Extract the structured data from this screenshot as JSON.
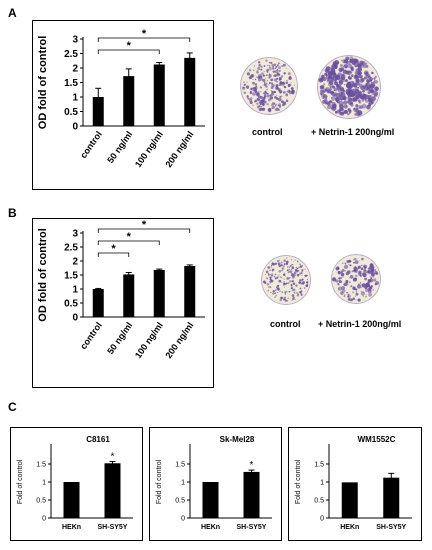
{
  "panels": {
    "a": {
      "letter": "A",
      "images": {
        "left_label": "control",
        "right_label": "+ Netrin-1 200ng/ml"
      }
    },
    "b": {
      "letter": "B",
      "images": {
        "left_label": "control",
        "right_label": "+ Netrin-1 200ng/ml"
      }
    },
    "c": {
      "letter": "C"
    }
  },
  "colors": {
    "bar": "#000000",
    "dish_bg": "#f0ead8",
    "dish_dot": "#6a4fa0"
  },
  "chart_data": [
    {
      "type": "bar",
      "title": "",
      "xlabel": "",
      "ylabel": "OD fold of control",
      "categories": [
        "control",
        "50 ng/ml",
        "100 ng/ml",
        "200 ng/ml"
      ],
      "values": [
        1.0,
        1.72,
        2.12,
        2.35
      ],
      "errors": [
        0.3,
        0.25,
        0.07,
        0.17
      ],
      "ylim": [
        0,
        3
      ],
      "yticks": [
        "0",
        "0.5",
        "1",
        "1.5",
        "2",
        "2.5",
        "3"
      ],
      "significance": [
        {
          "from": 0,
          "to": 2,
          "label": "*"
        },
        {
          "from": 0,
          "to": 3,
          "label": "*"
        }
      ],
      "grid": false
    },
    {
      "type": "bar",
      "title": "",
      "xlabel": "",
      "ylabel": "OD fold of control",
      "categories": [
        "control",
        "50 ng/ml",
        "100 ng/ml",
        "200 ng/ml"
      ],
      "values": [
        1.0,
        1.52,
        1.68,
        1.82
      ],
      "errors": [
        0.02,
        0.07,
        0.03,
        0.04
      ],
      "ylim": [
        0,
        3
      ],
      "yticks": [
        "0",
        "0.5",
        "1",
        "1.5",
        "2",
        "2.5",
        "3"
      ],
      "significance": [
        {
          "from": 0,
          "to": 1,
          "label": "*"
        },
        {
          "from": 0,
          "to": 2,
          "label": "*"
        },
        {
          "from": 0,
          "to": 3,
          "label": "*"
        }
      ],
      "grid": false
    },
    {
      "type": "bar",
      "title": "C8161",
      "xlabel": "",
      "ylabel": "Fold of control",
      "categories": [
        "HEKn",
        "SH-SY5Y"
      ],
      "values": [
        1.0,
        1.52
      ],
      "errors": [
        0.0,
        0.05
      ],
      "ylim": [
        0,
        2
      ],
      "yticks": [
        "0",
        "0.5",
        "1",
        "1.5"
      ],
      "star_on": [
        1
      ],
      "grid": false
    },
    {
      "type": "bar",
      "title": "Sk-Mel28",
      "xlabel": "",
      "ylabel": "Fold of control",
      "categories": [
        "HEKn",
        "SH-SY5Y"
      ],
      "values": [
        1.0,
        1.28
      ],
      "errors": [
        0.0,
        0.05
      ],
      "ylim": [
        0,
        2
      ],
      "yticks": [
        "0",
        "0.5",
        "1",
        "1.5"
      ],
      "star_on": [
        1
      ],
      "grid": false
    },
    {
      "type": "bar",
      "title": "WM1552C",
      "xlabel": "",
      "ylabel": "Fold of control",
      "categories": [
        "HEKn",
        "SH-SY5Y"
      ],
      "values": [
        0.99,
        1.12
      ],
      "errors": [
        0.0,
        0.12
      ],
      "ylim": [
        0,
        2
      ],
      "yticks": [
        "0",
        "0.5",
        "1",
        "1.5"
      ],
      "star_on": [],
      "grid": false
    }
  ]
}
